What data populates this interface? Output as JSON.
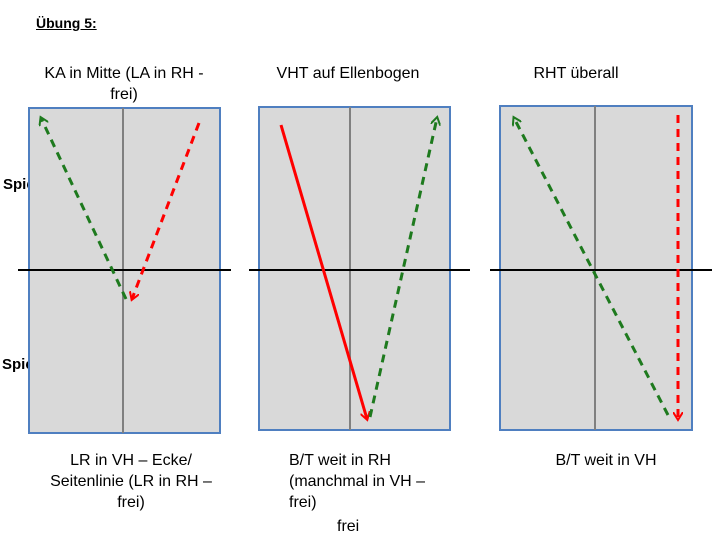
{
  "title": "Übung 5:",
  "side_labels": {
    "player_b": "Spieler B",
    "player_a": "Spieler A"
  },
  "exercises": [
    {
      "heading_lines": [
        "KA in Mitte (LA in RH -",
        "frei)"
      ],
      "caption_lines": [
        "LR in VH – Ecke/",
        "Seitenlinie (LR in RH –",
        "frei)"
      ]
    },
    {
      "heading_lines": [
        "VHT auf Ellenbogen"
      ],
      "caption_lines": [
        "B/T weit in RH",
        "(manchmal in VH –",
        "frei)"
      ],
      "extra_caption": "frei"
    },
    {
      "heading_lines": [
        "RHT überall"
      ],
      "caption_lines": [
        "B/T weit in VH"
      ]
    }
  ],
  "colors": {
    "table_fill": "#d9d9d9",
    "table_border": "#4f7fc0",
    "center_line": "#808080",
    "net": "#000000",
    "green": "#1e7a1e",
    "red": "#ff0000"
  }
}
